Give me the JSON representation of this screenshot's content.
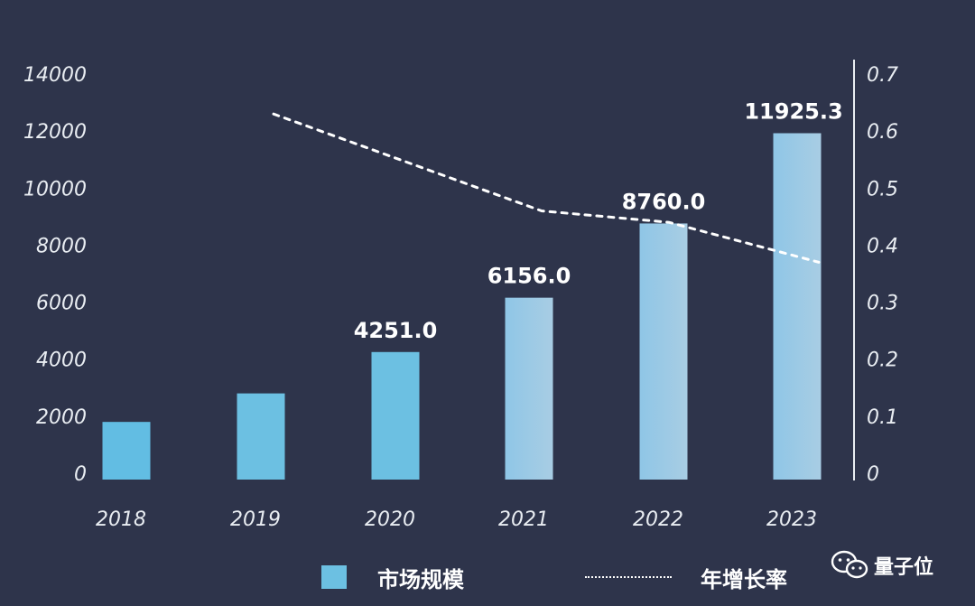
{
  "chart_data": {
    "type": "bar",
    "categories": [
      "2018",
      "2019",
      "2020",
      "2021",
      "2022",
      "2023"
    ],
    "series": [
      {
        "name": "市场规模",
        "type": "bar",
        "axis": "left",
        "values": [
          1800,
          2800,
          4251.0,
          6156.0,
          8760.0,
          11925.3
        ],
        "data_labels": [
          "",
          "",
          "4251.0",
          "6156.0",
          "8760.0",
          "11925.3"
        ],
        "color": "#6cc0e2"
      },
      {
        "name": "年增长率",
        "type": "line",
        "style": "dotted",
        "axis": "right",
        "x": [
          "2019",
          "2021",
          "2022",
          "2023"
        ],
        "values": [
          0.63,
          0.46,
          0.44,
          0.37
        ],
        "color": "#ffffff"
      }
    ],
    "y_left": {
      "ticks": [
        "0",
        "2000",
        "4000",
        "6000",
        "8000",
        "10000",
        "12000",
        "14000"
      ],
      "range": [
        0,
        14000
      ]
    },
    "y_right": {
      "ticks": [
        "0",
        "0.1",
        "0.2",
        "0.3",
        "0.4",
        "0.5",
        "0.6",
        "0.7"
      ],
      "range": [
        0,
        0.7
      ]
    },
    "legend": {
      "position": "bottom-center"
    },
    "grid": false
  },
  "watermark": {
    "text": "量子位",
    "icon": "wechat-icon"
  },
  "colors": {
    "background": "#2e344b",
    "bar": "#6cc0e2",
    "bar_light": "#9cc9e2",
    "text": "#ffffff"
  }
}
